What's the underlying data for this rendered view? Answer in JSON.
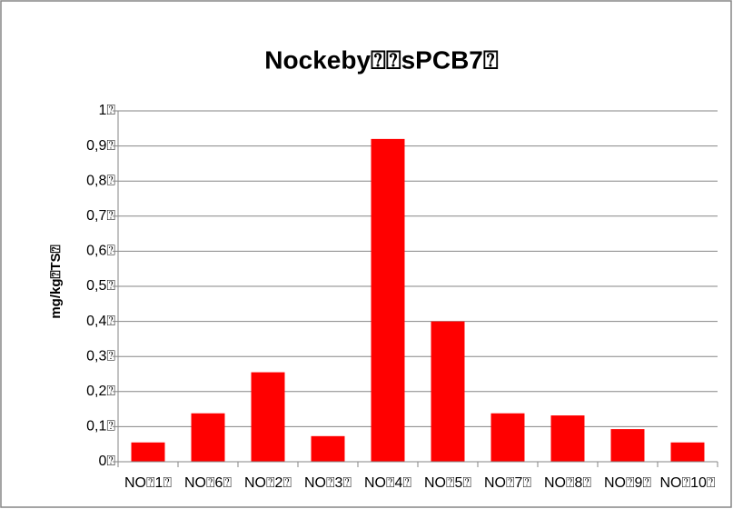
{
  "chart_data": {
    "type": "bar",
    "title": "Nockeby⍰⍰sPCB7⍰",
    "y_label": "mg/kg⍰TS⍰",
    "categories": [
      "NO⍰1⍰",
      "NO⍰6⍰",
      "NO⍰2⍰",
      "NO⍰3⍰",
      "NO⍰4⍰",
      "NO⍰5⍰",
      "NO⍰7⍰",
      "NO⍰8⍰",
      "NO⍰9⍰",
      "NO⍰10⍰"
    ],
    "values": [
      0.055,
      0.138,
      0.255,
      0.073,
      0.92,
      0.4,
      0.138,
      0.132,
      0.093,
      0.055
    ],
    "color": "#ff0000",
    "ylim": [
      0,
      1
    ],
    "yticks": [
      {
        "value": 0,
        "label": "0⍰"
      },
      {
        "value": 0.1,
        "label": "0,1⍰"
      },
      {
        "value": 0.2,
        "label": "0,2⍰"
      },
      {
        "value": 0.3,
        "label": "0,3⍰"
      },
      {
        "value": 0.4,
        "label": "0,4⍰"
      },
      {
        "value": 0.5,
        "label": "0,5⍰"
      },
      {
        "value": 0.6,
        "label": "0,6⍰"
      },
      {
        "value": 0.7,
        "label": "0,7⍰"
      },
      {
        "value": 0.8,
        "label": "0,8⍰"
      },
      {
        "value": 0.9,
        "label": "0,9⍰"
      },
      {
        "value": 1,
        "label": "1⍰"
      }
    ],
    "grid": true
  }
}
